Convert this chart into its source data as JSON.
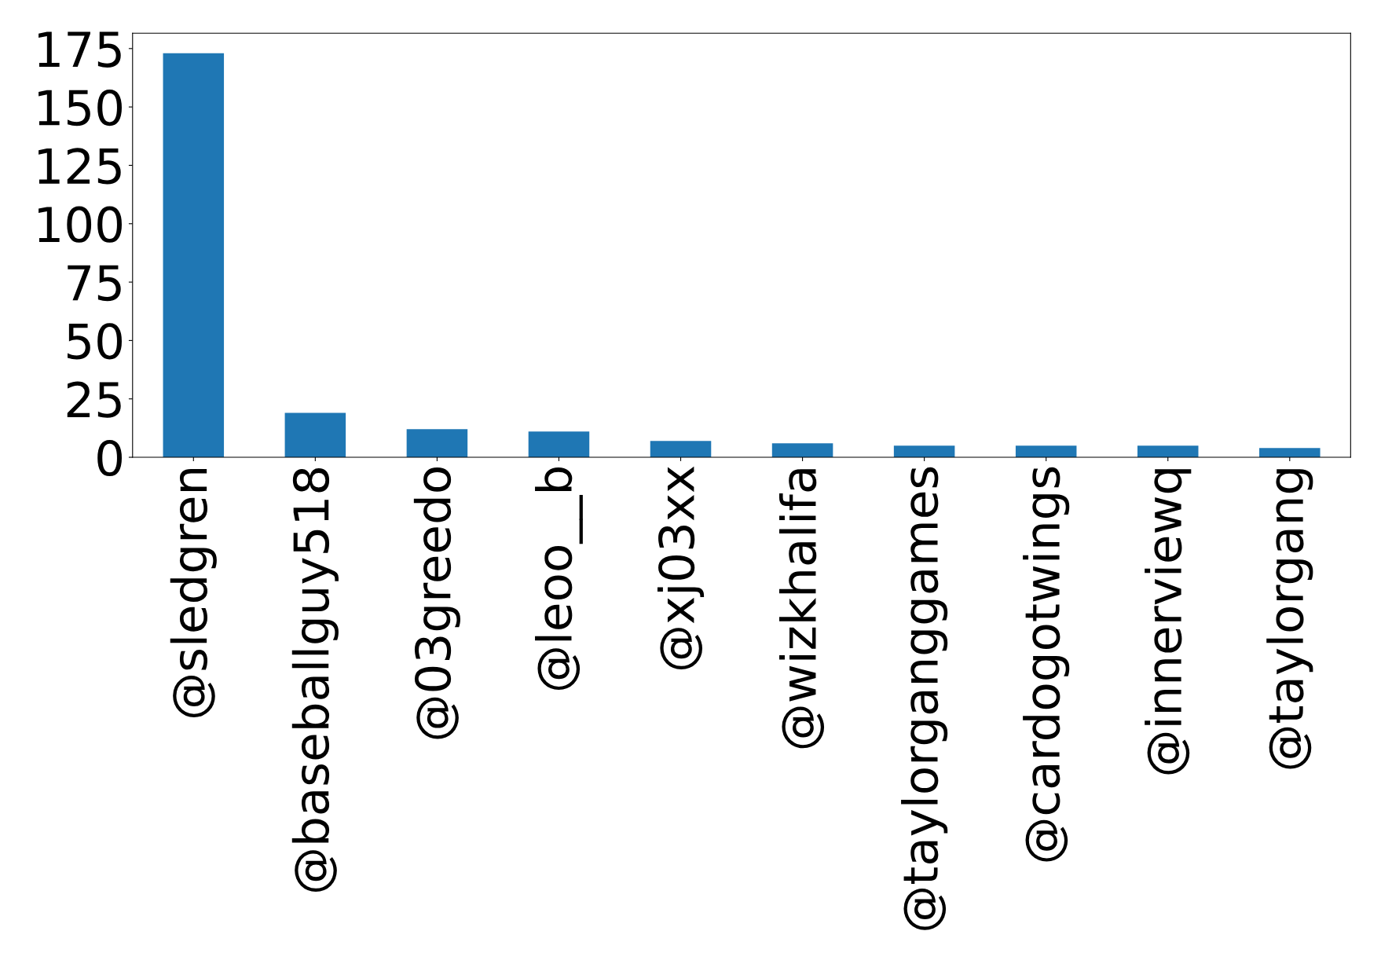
{
  "chart_data": {
    "type": "bar",
    "categories": [
      "@sledgren",
      "@baseballguy518",
      "@03greedo",
      "@leoo__b",
      "@xj03xx",
      "@wizkhalifa",
      "@taylorganggames",
      "@cardogotwings",
      "@innerviewq",
      "@taylorgang"
    ],
    "values": [
      173,
      19,
      12,
      11,
      7,
      6,
      5,
      5,
      5,
      4
    ],
    "color": "#1f77b4",
    "ylim": [
      0,
      181.6
    ],
    "yticks": [
      0,
      25,
      50,
      75,
      100,
      125,
      150,
      175
    ],
    "grid": false
  }
}
